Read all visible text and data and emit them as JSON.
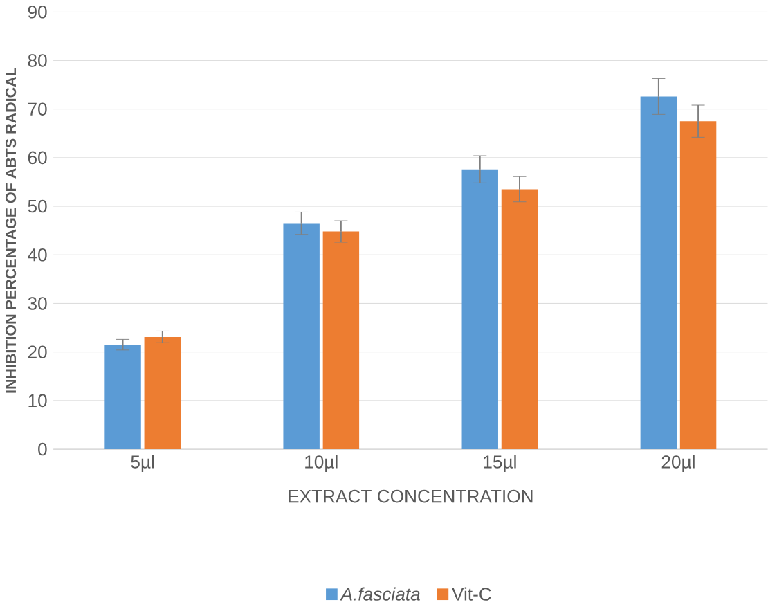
{
  "chart_data": {
    "type": "bar",
    "xlabel": "EXTRACT CONCENTRATION",
    "ylabel": "INHIBITION PERCENTAGE OF ABTS RADICAL",
    "categories": [
      "5µl",
      "10µl",
      "15µl",
      "20µl"
    ],
    "series": [
      {
        "name": "A.fasciata",
        "color": "#5b9bd5",
        "values": [
          21.5,
          46.5,
          57.6,
          72.6
        ],
        "errors": [
          1.1,
          2.3,
          2.8,
          3.7
        ]
      },
      {
        "name": "Vit-C",
        "color": "#ed7d31",
        "values": [
          23.1,
          44.8,
          53.5,
          67.5
        ],
        "errors": [
          1.2,
          2.2,
          2.6,
          3.3
        ]
      }
    ],
    "ylim": [
      0,
      90
    ],
    "yticks": [
      0,
      10,
      20,
      30,
      40,
      50,
      60,
      70,
      80,
      90
    ],
    "grid": "y",
    "legend": "bottom"
  }
}
